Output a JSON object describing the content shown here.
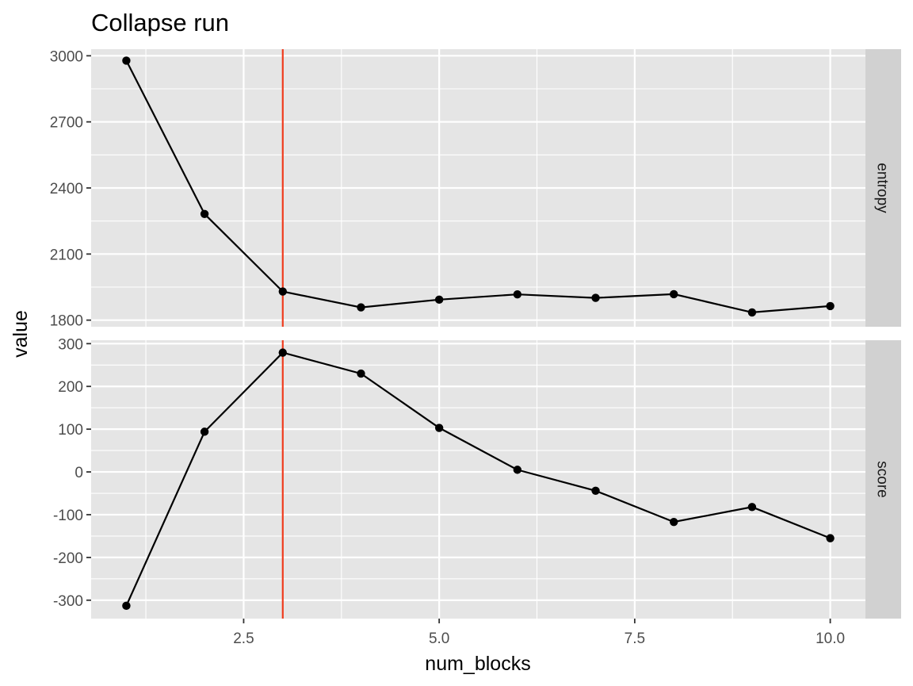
{
  "chart_data": {
    "type": "line",
    "title": "Collapse run",
    "xlabel": "num_blocks",
    "ylabel": "value",
    "x": [
      1,
      2,
      3,
      4,
      5,
      6,
      7,
      8,
      9,
      10
    ],
    "xlim": [
      0.55,
      10.45
    ],
    "x_ticks": [
      2.5,
      5.0,
      7.5,
      10.0
    ],
    "x_tick_labels": [
      "2.5",
      "5.0",
      "7.5",
      "10.0"
    ],
    "vline_x": 3,
    "grid": true,
    "colors": {
      "panel_bg": "#e5e5e5",
      "grid": "#ffffff",
      "strip_bg": "#d1d1d1",
      "line": "#000000",
      "vline": "#f03c1e",
      "tick_text": "#4d4d4d"
    },
    "facets": [
      {
        "name": "entropy",
        "strip_label": "entropy",
        "values": [
          2978,
          2282,
          1930,
          1858,
          1893,
          1917,
          1901,
          1918,
          1835,
          1864
        ],
        "ylim": [
          1770,
          3030
        ],
        "y_ticks": [
          1800,
          2100,
          2400,
          2700,
          3000
        ],
        "y_tick_labels": [
          "1800",
          "2100",
          "2400",
          "2700",
          "3000"
        ]
      },
      {
        "name": "score",
        "strip_label": "score",
        "values": [
          -313,
          94,
          279,
          230,
          103,
          5,
          -44,
          -117,
          -82,
          -155
        ],
        "ylim": [
          -343,
          308
        ],
        "y_ticks": [
          -300,
          -200,
          -100,
          0,
          100,
          200,
          300
        ],
        "y_tick_labels": [
          "-300",
          "-200",
          "-100",
          "0",
          "100",
          "200",
          "300"
        ]
      }
    ]
  }
}
